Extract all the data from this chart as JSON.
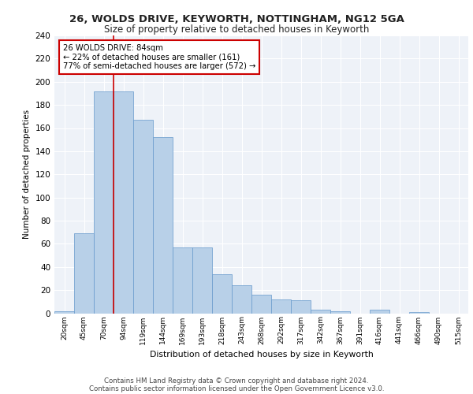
{
  "title1": "26, WOLDS DRIVE, KEYWORTH, NOTTINGHAM, NG12 5GA",
  "title2": "Size of property relative to detached houses in Keyworth",
  "xlabel": "Distribution of detached houses by size in Keyworth",
  "ylabel": "Number of detached properties",
  "categories": [
    "20sqm",
    "45sqm",
    "70sqm",
    "94sqm",
    "119sqm",
    "144sqm",
    "169sqm",
    "193sqm",
    "218sqm",
    "243sqm",
    "268sqm",
    "292sqm",
    "317sqm",
    "342sqm",
    "367sqm",
    "391sqm",
    "416sqm",
    "441sqm",
    "466sqm",
    "490sqm",
    "515sqm"
  ],
  "values": [
    2,
    69,
    192,
    192,
    167,
    152,
    57,
    57,
    34,
    24,
    16,
    12,
    11,
    3,
    2,
    0,
    3,
    0,
    1,
    0,
    0
  ],
  "bar_color": "#b8d0e8",
  "bar_edge_color": "#6699cc",
  "bg_color": "#eef2f8",
  "grid_color": "#ffffff",
  "vline_color": "#cc0000",
  "vline_x": 2.5,
  "annotation_text": "26 WOLDS DRIVE: 84sqm\n← 22% of detached houses are smaller (161)\n77% of semi-detached houses are larger (572) →",
  "footer1": "Contains HM Land Registry data © Crown copyright and database right 2024.",
  "footer2": "Contains public sector information licensed under the Open Government Licence v3.0.",
  "ylim": [
    0,
    240
  ],
  "yticks": [
    0,
    20,
    40,
    60,
    80,
    100,
    120,
    140,
    160,
    180,
    200,
    220,
    240
  ]
}
